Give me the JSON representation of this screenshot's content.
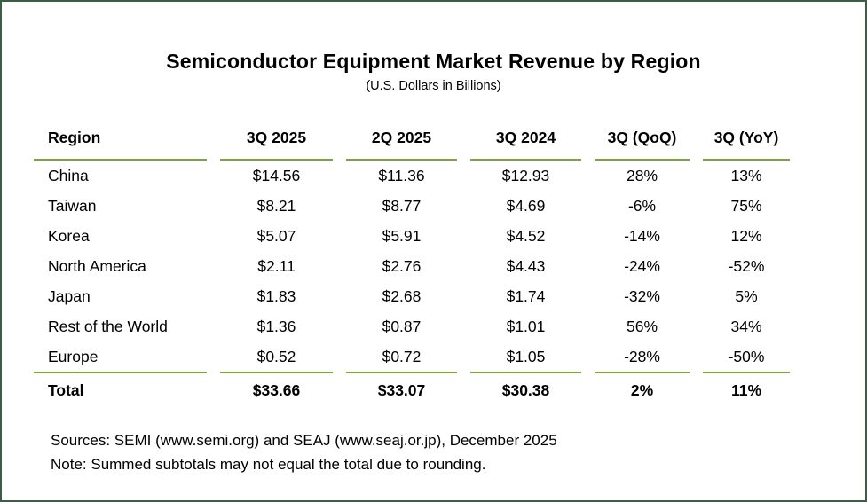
{
  "title": "Semiconductor Equipment Market Revenue by Region",
  "subtitle": "(U.S. Dollars in Billions)",
  "table": {
    "columns": [
      "Region",
      "3Q 2025",
      "2Q 2025",
      "3Q 2024",
      "3Q (QoQ)",
      "3Q (YoY)"
    ],
    "rows": [
      [
        "China",
        "$14.56",
        "$11.36",
        "$12.93",
        "28%",
        "13%"
      ],
      [
        "Taiwan",
        "$8.21",
        "$8.77",
        "$4.69",
        "-6%",
        "75%"
      ],
      [
        "Korea",
        "$5.07",
        "$5.91",
        "$4.52",
        "-14%",
        "12%"
      ],
      [
        "North America",
        "$2.11",
        "$2.76",
        "$4.43",
        "-24%",
        "-52%"
      ],
      [
        "Japan",
        "$1.83",
        "$2.68",
        "$1.74",
        "-32%",
        "5%"
      ],
      [
        "Rest of the World",
        "$1.36",
        "$0.87",
        "$1.01",
        "56%",
        "34%"
      ],
      [
        "Europe",
        "$0.52",
        "$0.72",
        "$1.05",
        "-28%",
        "-50%"
      ]
    ],
    "total_row": [
      "Total",
      "$33.66",
      "$33.07",
      "$30.38",
      "2%",
      "11%"
    ]
  },
  "footer": {
    "sources": "Sources: SEMI (www.semi.org) and SEAJ (www.seaj.or.jp), December 2025",
    "note": "Note: Summed subtotals may not equal the total due to rounding."
  },
  "colors": {
    "accent_green": "#7CA63C",
    "border_green": "#3F5C46",
    "text_color": "#000000"
  },
  "chart_data": {
    "type": "table",
    "title": "Semiconductor Equipment Market Revenue by Region",
    "subtitle": "(U.S. Dollars in Billions)",
    "units": "U.S. Dollars in Billions",
    "columns": [
      "Region",
      "3Q 2025",
      "2Q 2025",
      "3Q 2024",
      "3Q (QoQ)",
      "3Q (YoY)"
    ],
    "rows": [
      {
        "region": "China",
        "q3_2025": 14.56,
        "q2_2025": 11.36,
        "q3_2024": 12.93,
        "qoq_pct": 28,
        "yoy_pct": 13
      },
      {
        "region": "Taiwan",
        "q3_2025": 8.21,
        "q2_2025": 8.77,
        "q3_2024": 4.69,
        "qoq_pct": -6,
        "yoy_pct": 75
      },
      {
        "region": "Korea",
        "q3_2025": 5.07,
        "q2_2025": 5.91,
        "q3_2024": 4.52,
        "qoq_pct": -14,
        "yoy_pct": 12
      },
      {
        "region": "North America",
        "q3_2025": 2.11,
        "q2_2025": 2.76,
        "q3_2024": 4.43,
        "qoq_pct": -24,
        "yoy_pct": -52
      },
      {
        "region": "Japan",
        "q3_2025": 1.83,
        "q2_2025": 2.68,
        "q3_2024": 1.74,
        "qoq_pct": -32,
        "yoy_pct": 5
      },
      {
        "region": "Rest of the World",
        "q3_2025": 1.36,
        "q2_2025": 0.87,
        "q3_2024": 1.01,
        "qoq_pct": 56,
        "yoy_pct": 34
      },
      {
        "region": "Europe",
        "q3_2025": 0.52,
        "q2_2025": 0.72,
        "q3_2024": 1.05,
        "qoq_pct": -28,
        "yoy_pct": -50
      }
    ],
    "total": {
      "region": "Total",
      "q3_2025": 33.66,
      "q2_2025": 33.07,
      "q3_2024": 30.38,
      "qoq_pct": 2,
      "yoy_pct": 11
    }
  }
}
